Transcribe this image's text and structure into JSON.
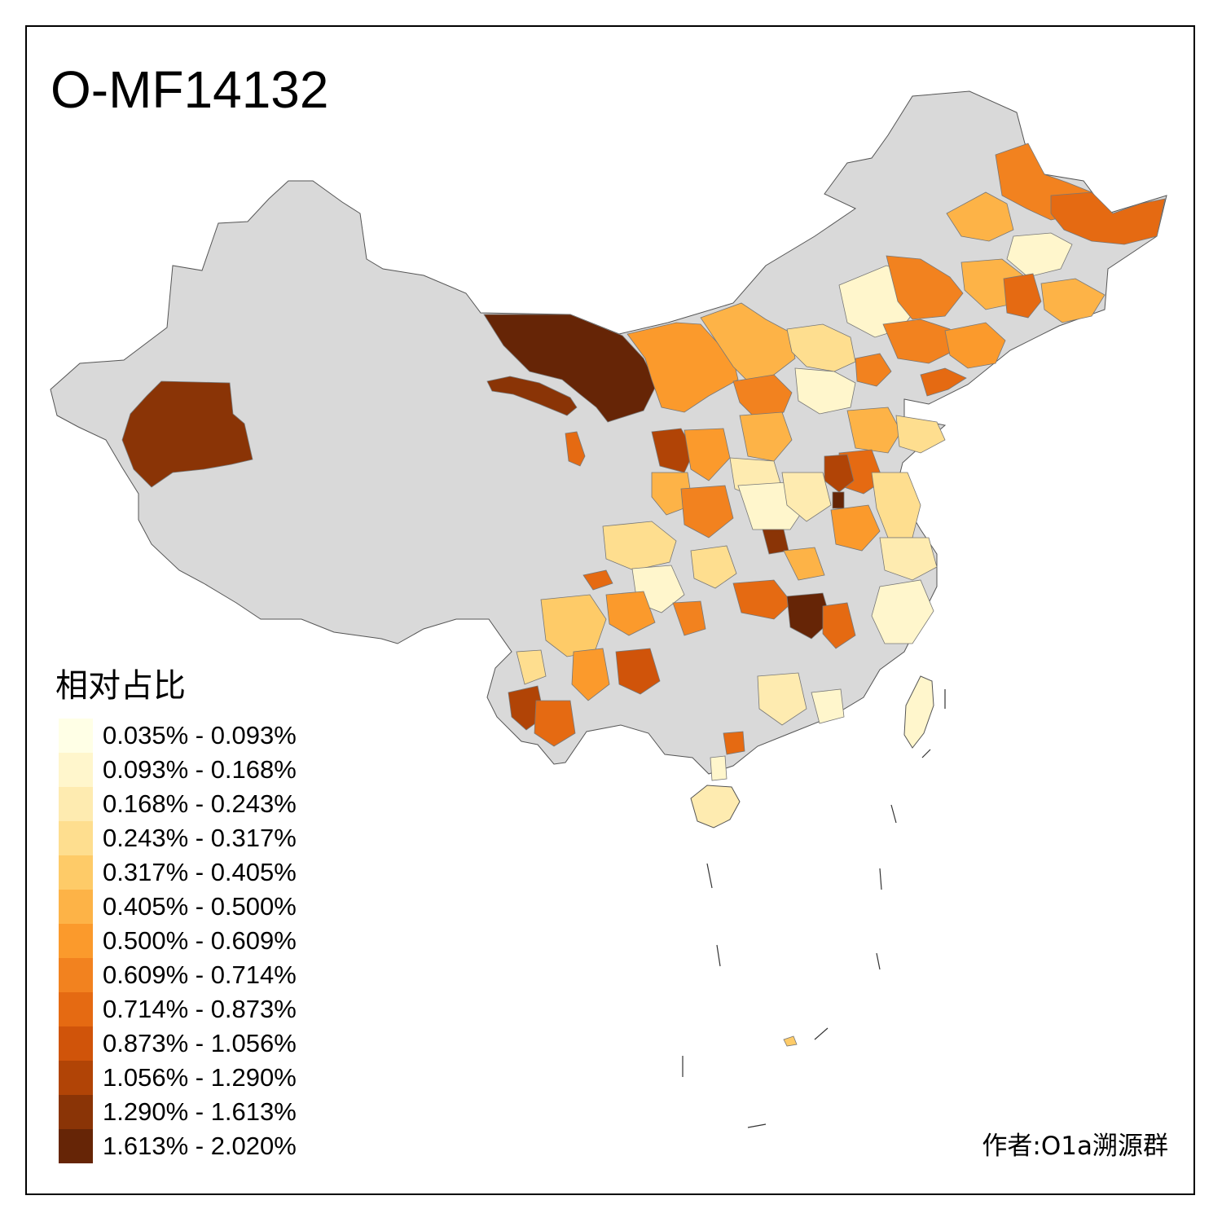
{
  "title": "O-MF14132",
  "legend": {
    "title": "相对占比",
    "items": [
      {
        "label": "0.035% - 0.093%",
        "color": "#FFFFE6"
      },
      {
        "label": "0.093% - 0.168%",
        "color": "#FFF6CC"
      },
      {
        "label": "0.168% - 0.243%",
        "color": "#FEEBB0"
      },
      {
        "label": "0.243% - 0.317%",
        "color": "#FEDE8F"
      },
      {
        "label": "0.317% - 0.405%",
        "color": "#FECB68"
      },
      {
        "label": "0.405% - 0.500%",
        "color": "#FDB347"
      },
      {
        "label": "0.500% - 0.609%",
        "color": "#FB9A2C"
      },
      {
        "label": "0.609% - 0.714%",
        "color": "#F2821F"
      },
      {
        "label": "0.714% - 0.873%",
        "color": "#E56A12"
      },
      {
        "label": "0.873% - 1.056%",
        "color": "#D0540A"
      },
      {
        "label": "1.056% - 1.290%",
        "color": "#B14406"
      },
      {
        "label": "1.290% - 1.613%",
        "color": "#8A3406"
      },
      {
        "label": "1.613% - 2.020%",
        "color": "#662506"
      }
    ]
  },
  "author": "作者:O1a溯源群",
  "no_data_color": "#D9D9D9"
}
